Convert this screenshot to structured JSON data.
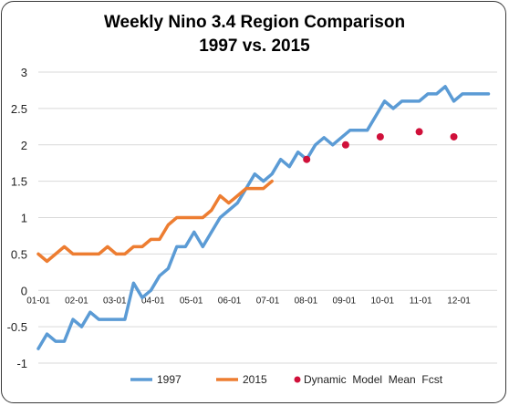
{
  "chart_data": {
    "type": "line",
    "title": "Weekly Nino 3.4 Region Comparison",
    "subtitle": "1997 vs. 2015",
    "xlabel": "",
    "ylabel": "",
    "ylim": [
      -1,
      3
    ],
    "yticks": [
      -1,
      -0.5,
      0,
      0.5,
      1,
      1.5,
      2,
      2.5,
      3
    ],
    "ytick_labels": [
      "-1",
      "-0.5",
      "0",
      "0.5",
      "1",
      "1.5",
      "2",
      "2.5",
      "3"
    ],
    "xticks": [
      "01-01",
      "02-01",
      "03-01",
      "04-01",
      "05-01",
      "06-01",
      "07-01",
      "08-01",
      "09-01",
      "10-01",
      "11-01",
      "12-01"
    ],
    "grid": "horizontal",
    "legend": "bottom",
    "series": [
      {
        "name": "1997",
        "color": "#5b9bd5",
        "kind": "line",
        "values": [
          -0.8,
          -0.6,
          -0.7,
          -0.7,
          -0.4,
          -0.5,
          -0.3,
          -0.4,
          -0.4,
          -0.4,
          -0.4,
          0.1,
          -0.1,
          0.0,
          0.2,
          0.3,
          0.6,
          0.6,
          0.8,
          0.6,
          0.8,
          1.0,
          1.1,
          1.2,
          1.4,
          1.6,
          1.5,
          1.6,
          1.8,
          1.7,
          1.9,
          1.8,
          2.0,
          2.1,
          2.0,
          2.1,
          2.2,
          2.2,
          2.2,
          2.4,
          2.6,
          2.5,
          2.6,
          2.6,
          2.6,
          2.7,
          2.7,
          2.8,
          2.6,
          2.7,
          2.7,
          2.7,
          2.7
        ]
      },
      {
        "name": "2015",
        "color": "#ed7d31",
        "kind": "line",
        "values": [
          0.5,
          0.4,
          0.5,
          0.6,
          0.5,
          0.5,
          0.5,
          0.5,
          0.6,
          0.5,
          0.5,
          0.6,
          0.6,
          0.7,
          0.7,
          0.9,
          1.0,
          1.0,
          1.0,
          1.0,
          1.1,
          1.3,
          1.2,
          1.3,
          1.4,
          1.4,
          1.4,
          1.5
        ]
      },
      {
        "name": "Dynamic  Model  Mean  Fcst",
        "color": "#d0103a",
        "kind": "scatter",
        "x": [
          31,
          35.5,
          39.5,
          44,
          48
        ],
        "values": [
          1.8,
          2.0,
          2.11,
          2.18,
          2.11
        ]
      }
    ]
  }
}
